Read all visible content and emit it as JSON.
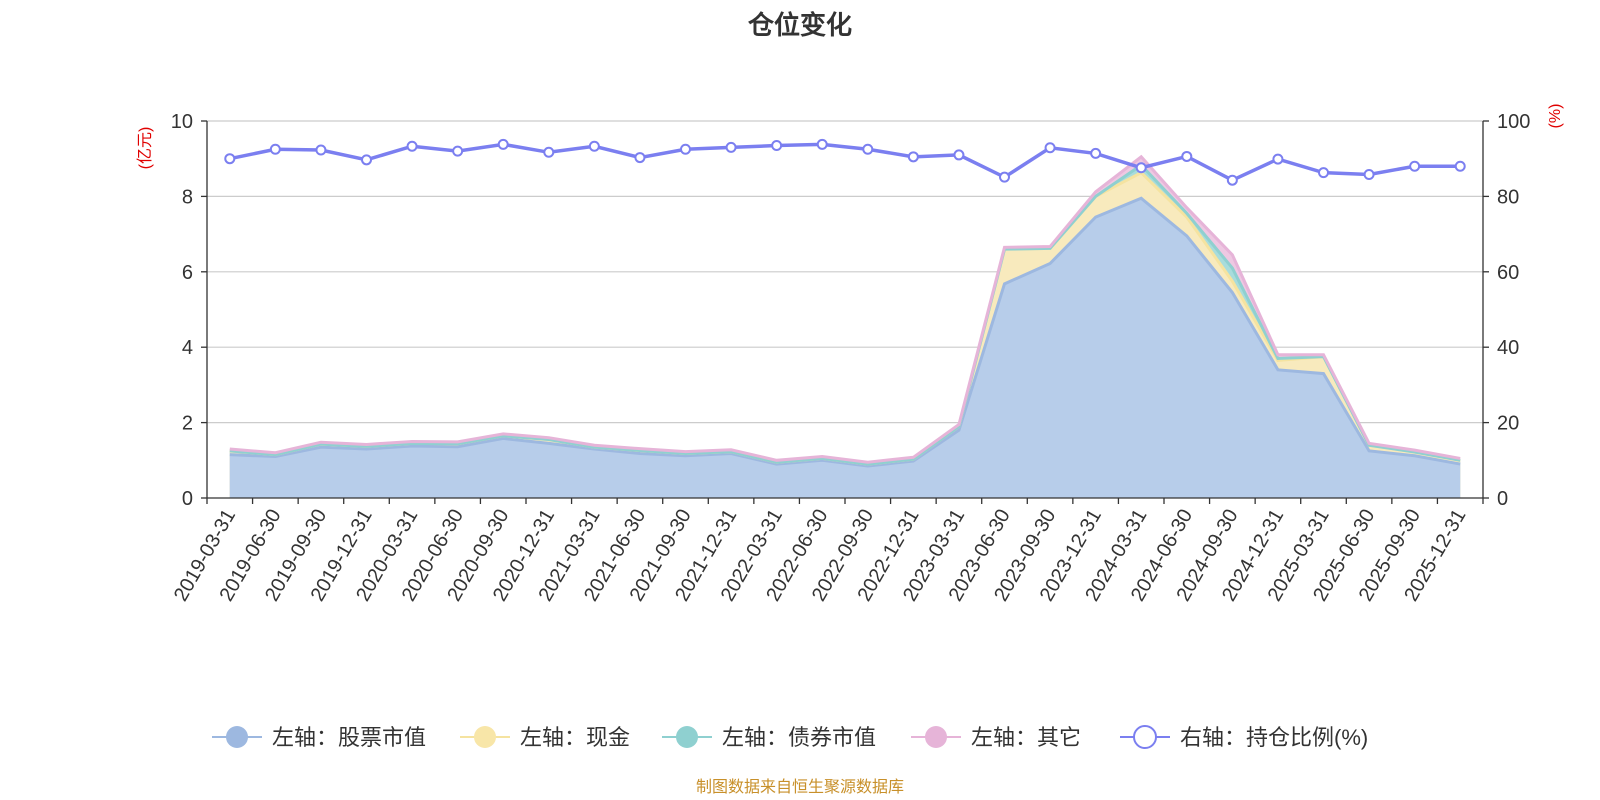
{
  "chart_data": {
    "type": "area",
    "title": "仓位变化",
    "left_unit": "(亿元)",
    "right_unit": "(%)",
    "ylim_left": [
      0,
      10
    ],
    "ylim_right": [
      0,
      100
    ],
    "yticks_left": [
      "0",
      "2",
      "4",
      "6",
      "8",
      "10"
    ],
    "yticks_right": [
      "0",
      "20",
      "40",
      "60",
      "80",
      "100"
    ],
    "grid": true,
    "legend_placement": "bottom",
    "x": [
      "2019-03-31",
      "2019-06-30",
      "2019-09-30",
      "2019-12-31",
      "2020-03-31",
      "2020-06-30",
      "2020-09-30",
      "2020-12-31",
      "2021-03-31",
      "2021-06-30",
      "2021-09-30",
      "2021-12-31",
      "2022-03-31",
      "2022-06-30",
      "2022-09-30",
      "2022-12-31",
      "2023-03-31",
      "2023-06-30",
      "2023-09-30",
      "2023-12-31",
      "2024-03-31",
      "2024-06-30",
      "2024-09-30",
      "2024-12-31",
      "2025-03-31",
      "2025-06-30",
      "2025-09-30",
      "2025-12-31"
    ],
    "series": [
      {
        "name": "左轴：股票市值",
        "axis": "left",
        "stack": true,
        "color": "#9db8e0",
        "fill": "#b7cdea",
        "values": [
          1.15,
          1.1,
          1.35,
          1.3,
          1.38,
          1.36,
          1.58,
          1.45,
          1.3,
          1.18,
          1.12,
          1.18,
          0.9,
          1.0,
          0.85,
          0.98,
          1.8,
          5.68,
          6.22,
          7.45,
          7.95,
          6.95,
          5.45,
          3.4,
          3.3,
          1.25,
          1.12,
          0.9
        ]
      },
      {
        "name": "左轴：现金",
        "axis": "left",
        "stack": true,
        "color": "#f5e3a0",
        "fill": "#f8eabd",
        "values": [
          0.1,
          0.05,
          0.08,
          0.07,
          0.07,
          0.08,
          0.07,
          0.1,
          0.05,
          0.08,
          0.06,
          0.05,
          0.05,
          0.05,
          0.05,
          0.05,
          0.1,
          0.92,
          0.4,
          0.55,
          0.68,
          0.5,
          0.3,
          0.25,
          0.45,
          0.15,
          0.1,
          0.1
        ]
      },
      {
        "name": "左轴：债券市值",
        "axis": "left",
        "stack": true,
        "color": "#8fd0d0",
        "fill": "#a8dcdc",
        "values": [
          0,
          0,
          0,
          0,
          0,
          0,
          0,
          0,
          0,
          0,
          0,
          0,
          0,
          0,
          0,
          0,
          0,
          0,
          0,
          0,
          0.2,
          0.1,
          0.35,
          0.05,
          0,
          0,
          0,
          0
        ]
      },
      {
        "name": "左轴：其它",
        "axis": "left",
        "stack": true,
        "color": "#e6b4d8",
        "fill": "#eec8e2",
        "values": [
          0.05,
          0.05,
          0.05,
          0.05,
          0.05,
          0.05,
          0.05,
          0.05,
          0.05,
          0.05,
          0.05,
          0.05,
          0.05,
          0.05,
          0.05,
          0.05,
          0.05,
          0.05,
          0.05,
          0.12,
          0.22,
          0.15,
          0.35,
          0.1,
          0.05,
          0.05,
          0.05,
          0.05
        ]
      },
      {
        "name": "右轴：持仓比例(%)",
        "axis": "right",
        "stack": false,
        "color": "#7b7ff0",
        "values": [
          90,
          92.5,
          92.3,
          89.7,
          93.3,
          92,
          93.8,
          91.7,
          93.3,
          90.3,
          92.5,
          93,
          93.5,
          93.8,
          92.5,
          90.5,
          91,
          85.1,
          92.9,
          91.4,
          87.6,
          90.6,
          84.3,
          89.9,
          86.3,
          85.8,
          88,
          88
        ]
      }
    ]
  },
  "source_text": "制图数据来自恒生聚源数据库"
}
